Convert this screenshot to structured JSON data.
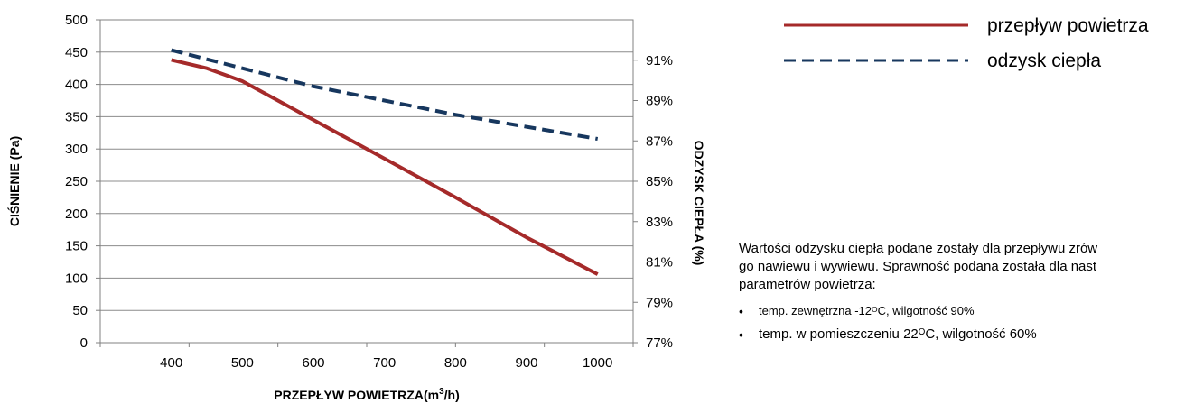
{
  "chart_data": {
    "type": "line",
    "x": [
      400,
      500,
      600,
      700,
      800,
      900,
      1000
    ],
    "xlabel_main": "PRZEPŁYW POWIETRZA",
    "xlabel_unit_pre": "(m",
    "xlabel_unit_sup": "3",
    "xlabel_unit_post": "/h)",
    "ylabel_left": "CIŚNIENIE (Pa)",
    "ylabel_right": "ODZYSK CIEPŁA (%)",
    "ylim_left": [
      0,
      500
    ],
    "ylim_right": [
      77,
      93
    ],
    "left_ticks": [
      "0",
      "50",
      "100",
      "150",
      "200",
      "250",
      "300",
      "350",
      "400",
      "450",
      "500"
    ],
    "right_ticks": [
      "77%",
      "79%",
      "81%",
      "83%",
      "85%",
      "87%",
      "89%",
      "91%"
    ],
    "x_ticks": [
      "400",
      "500",
      "600",
      "700",
      "800",
      "900",
      "1000"
    ],
    "grid": "horizontal",
    "legend_position": "top-right",
    "series": [
      {
        "name": "przepływ powietrza",
        "axis": "left",
        "color": "#a52a2a",
        "style": "solid",
        "points": [
          [
            400,
            438
          ],
          [
            450,
            425
          ],
          [
            500,
            405
          ],
          [
            550,
            375
          ],
          [
            600,
            345
          ],
          [
            700,
            285
          ],
          [
            800,
            225
          ],
          [
            900,
            163
          ],
          [
            1000,
            106
          ]
        ]
      },
      {
        "name": "odzysk ciepła",
        "axis": "right",
        "color": "#17375e",
        "style": "dashed",
        "points": [
          [
            400,
            91.5
          ],
          [
            500,
            90.6
          ],
          [
            600,
            89.7
          ],
          [
            700,
            89.0
          ],
          [
            800,
            88.3
          ],
          [
            900,
            87.7
          ],
          [
            1000,
            87.1
          ]
        ]
      }
    ]
  },
  "note": {
    "paragraph": "Wartości odzysku ciepła podane zostały dla przepływu zrównoważonego nawiewu i wywiewu. Sprawność podana została dla następujących parametrów powietrza:",
    "line1": "Wartości odzysku ciepła podane zostały dla przepływu zrów",
    "line2": "go nawiewu i wywiewu. Sprawność podana została dla nast",
    "line3": "parametrów powietrza:",
    "bullet1_pre": "temp. zewnętrzna -12",
    "bullet1_sup": "O",
    "bullet1_post": "C, wilgotność 90%",
    "bullet2_pre": "temp. w pomieszczeniu 22",
    "bullet2_sup": "O",
    "bullet2_post": "C, wilgotność 60%"
  }
}
